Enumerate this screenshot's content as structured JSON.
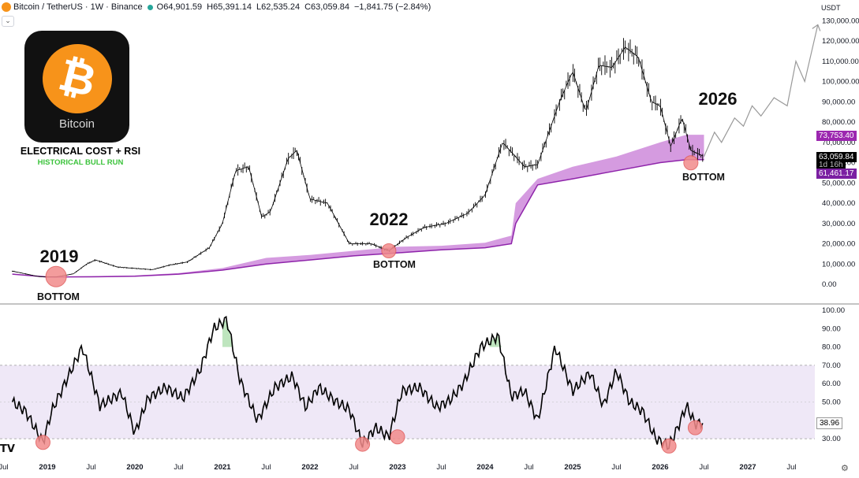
{
  "header": {
    "symbol": "Bitcoin / TetherUS · 1W · Binance",
    "open": "O64,901.59",
    "high": "H65,391.14",
    "low": "L62,535.24",
    "close": "C63,059.84",
    "change": "−1,841.75 (−2.84%)",
    "currency": "USDT"
  },
  "logo": {
    "symbol": "₿",
    "name": "Bitcoin"
  },
  "title": {
    "line1": "ELECTRICAL COST + RSI",
    "line2": "HISTORICAL BULL RUN"
  },
  "annotations": [
    {
      "year": "2019",
      "label": "BOTTOM"
    },
    {
      "year": "2022",
      "label": "BOTTOM"
    },
    {
      "year": "2026",
      "label": "BOTTOM"
    }
  ],
  "price_labels": {
    "upper": "73,753.40",
    "current": "63,059.84",
    "countdown": "1d 16h",
    "lower": "61,461.17"
  },
  "rsi_label": "38.96",
  "colors": {
    "band": "#c77ad6",
    "band_line": "#8e24aa",
    "candle": "#000000",
    "marker": "#f28b8b",
    "rsi_zone": "#efe8f7",
    "rsi_high": "#b7e2b7",
    "badge_upper": "#9c27b0",
    "badge_current": "#000000",
    "badge_lower": "#7b1fa2"
  },
  "chart_data": [
    {
      "type": "line",
      "name": "price",
      "y_ticks": [
        "130,000.00",
        "120,000.00",
        "110,000.00",
        "100,000.00",
        "90,000.00",
        "80,000.00",
        "70,000.00",
        "60,000.00",
        "50,000.00",
        "40,000.00",
        "30,000.00",
        "20,000.00",
        "10,000.00",
        "0.00"
      ],
      "x_ticks": [
        "Jul",
        "2019",
        "Jul",
        "2020",
        "Jul",
        "2021",
        "Jul",
        "2022",
        "Jul",
        "2023",
        "Jul",
        "2024",
        "Jul",
        "2025",
        "Jul",
        "2026",
        "Jul",
        "2027",
        "Jul"
      ],
      "series": [
        {
          "x": [
            2018.6,
            2018.9,
            2019.1,
            2019.3,
            2019.45,
            2019.55,
            2019.8,
            2020.2,
            2020.4,
            2020.6,
            2020.85,
            2021.0,
            2021.15,
            2021.3,
            2021.45,
            2021.55,
            2021.75,
            2021.85,
            2022.0,
            2022.2,
            2022.45,
            2022.7,
            2022.9,
            2023.1,
            2023.3,
            2023.55,
            2023.8,
            2024.0,
            2024.2,
            2024.45,
            2024.6,
            2024.85,
            2025.0,
            2025.15,
            2025.3,
            2025.45,
            2025.6,
            2025.75,
            2025.9,
            2026.0,
            2026.12,
            2026.25,
            2026.35,
            2026.5
          ],
          "y": [
            6500,
            3800,
            3600,
            5200,
            10000,
            12000,
            8500,
            7200,
            9500,
            11000,
            18000,
            30000,
            56000,
            58000,
            33000,
            36000,
            62000,
            66000,
            42000,
            40000,
            20000,
            20000,
            16500,
            23000,
            28000,
            30000,
            35000,
            44000,
            70000,
            58000,
            59000,
            90000,
            105000,
            85000,
            108000,
            107000,
            117000,
            112000,
            90000,
            88000,
            68000,
            82000,
            66000,
            63059
          ]
        }
      ]
    },
    {
      "type": "area",
      "name": "electrical cost band",
      "series": [
        {
          "x": [
            2018.6,
            2019.0,
            2019.5,
            2020.0,
            2020.5,
            2021.0,
            2021.5,
            2022.0,
            2022.5,
            2023.0,
            2023.5,
            2024.0,
            2024.3,
            2024.35,
            2024.6,
            2025.0,
            2025.5,
            2026.0,
            2026.3,
            2026.5
          ],
          "y": [
            5200,
            3800,
            4000,
            4300,
            5500,
            8000,
            13000,
            14500,
            16500,
            18500,
            19000,
            20500,
            24000,
            40000,
            52000,
            58000,
            63000,
            70000,
            73753,
            73753
          ]
        },
        {
          "x": [
            2018.6,
            2019.0,
            2019.5,
            2020.0,
            2020.5,
            2021.0,
            2021.5,
            2022.0,
            2022.5,
            2023.0,
            2023.5,
            2024.0,
            2024.3,
            2024.35,
            2024.6,
            2025.0,
            2025.5,
            2026.0,
            2026.3,
            2026.5
          ],
          "y": [
            5000,
            3600,
            3700,
            4000,
            5000,
            7000,
            10000,
            12000,
            14000,
            15500,
            17000,
            18000,
            20000,
            30000,
            49000,
            52000,
            56000,
            60000,
            61461,
            61461
          ]
        }
      ]
    },
    {
      "type": "line",
      "name": "projection",
      "series": [
        {
          "x": [
            2026.5,
            2026.62,
            2026.7,
            2026.85,
            2026.95,
            2027.05,
            2027.15,
            2027.3,
            2027.45,
            2027.55,
            2027.65,
            2027.8
          ],
          "y": [
            63000,
            75000,
            70000,
            82000,
            78000,
            88000,
            83000,
            92000,
            88000,
            110000,
            100000,
            128000
          ]
        }
      ]
    },
    {
      "type": "line",
      "name": "RSI",
      "y_ticks": [
        "100.00",
        "90.00",
        "80.00",
        "70.00",
        "60.00",
        "50.00",
        "40.00",
        "30.00"
      ],
      "zone": [
        30,
        70
      ],
      "series": [
        {
          "x": [
            2018.6,
            2018.75,
            2018.95,
            2019.05,
            2019.2,
            2019.4,
            2019.6,
            2019.85,
            2020.0,
            2020.15,
            2020.35,
            2020.55,
            2020.75,
            2020.9,
            2021.05,
            2021.2,
            2021.4,
            2021.6,
            2021.8,
            2021.95,
            2022.1,
            2022.3,
            2022.45,
            2022.6,
            2022.75,
            2022.9,
            2023.05,
            2023.25,
            2023.45,
            2023.6,
            2023.75,
            2023.95,
            2024.15,
            2024.3,
            2024.45,
            2024.6,
            2024.8,
            2025.0,
            2025.2,
            2025.35,
            2025.5,
            2025.65,
            2025.8,
            2025.95,
            2026.1,
            2026.2,
            2026.3,
            2026.4,
            2026.5
          ],
          "y": [
            50,
            45,
            28,
            45,
            60,
            80,
            48,
            55,
            33,
            52,
            58,
            52,
            68,
            90,
            95,
            62,
            40,
            58,
            64,
            47,
            58,
            50,
            46,
            27,
            36,
            31,
            56,
            58,
            47,
            51,
            60,
            80,
            86,
            53,
            56,
            40,
            80,
            56,
            66,
            48,
            67,
            50,
            45,
            30,
            26,
            36,
            48,
            38,
            38.96
          ]
        }
      ]
    }
  ]
}
